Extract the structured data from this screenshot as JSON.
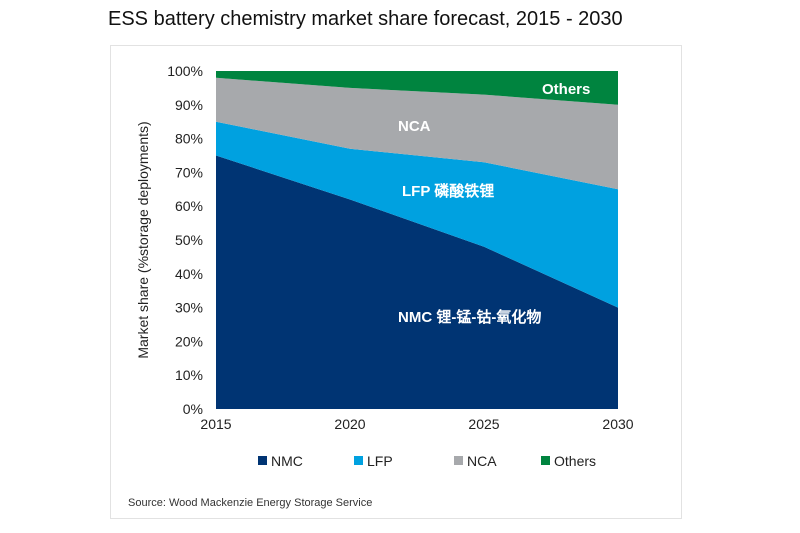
{
  "title": "ESS battery chemistry market share forecast, 2015 - 2030",
  "source": "Source: Wood Mackenzie Energy Storage Service",
  "chart_data": {
    "type": "area",
    "stacked": true,
    "x": [
      2015,
      2020,
      2025,
      2030
    ],
    "xticks": [
      "2015",
      "2020",
      "2025",
      "2030"
    ],
    "ylabel": "Market share (%storage deployments)",
    "ylim": [
      0,
      100
    ],
    "yticks": [
      "0%",
      "10%",
      "20%",
      "30%",
      "40%",
      "50%",
      "60%",
      "70%",
      "80%",
      "90%",
      "100%"
    ],
    "legend_position": "bottom",
    "series": [
      {
        "name": "NMC",
        "values": [
          75,
          62,
          48,
          30
        ],
        "color": "#003473",
        "label": "NMC  锂-锰-钴-氧化物"
      },
      {
        "name": "LFP",
        "values": [
          10,
          15,
          25,
          35
        ],
        "color": "#00a1e0",
        "label": "LFP  磷酸铁锂"
      },
      {
        "name": "NCA",
        "values": [
          13,
          18,
          20,
          25
        ],
        "color": "#a7a9ac",
        "label": "NCA"
      },
      {
        "name": "Others",
        "values": [
          2,
          5,
          7,
          10
        ],
        "color": "#00843f",
        "label": "Others"
      }
    ]
  }
}
